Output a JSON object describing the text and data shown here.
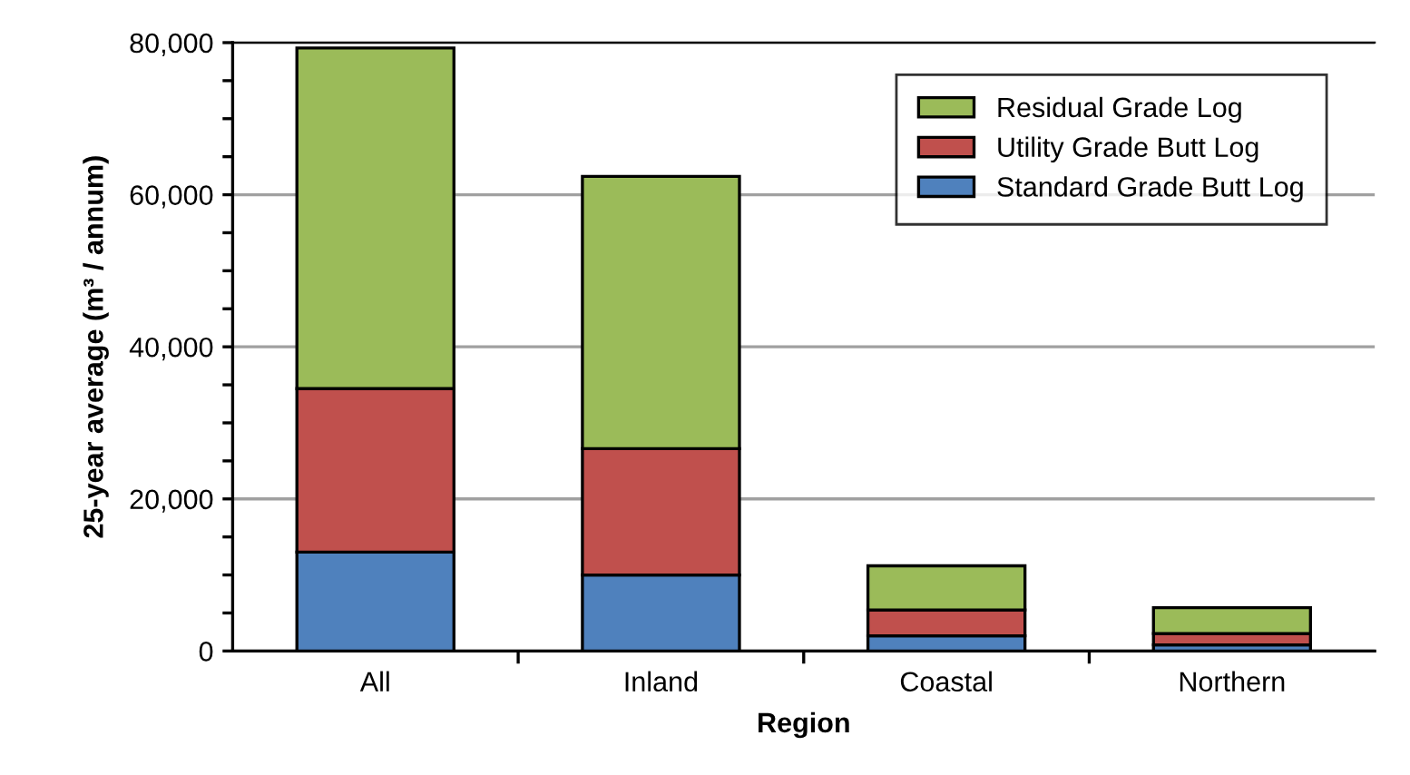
{
  "chart_data": {
    "type": "bar",
    "stacked": true,
    "xlabel": "Region",
    "ylabel": "25-year average (m³ / annum)",
    "categories": [
      "All",
      "Inland",
      "Coastal",
      "Northern"
    ],
    "series": [
      {
        "name": "Standard Grade Butt Log",
        "color": "#4f81bd",
        "values": [
          13000,
          10000,
          2000,
          800
        ]
      },
      {
        "name": "Utility Grade Butt Log",
        "color": "#c0504d",
        "values": [
          21500,
          16600,
          3400,
          1500
        ]
      },
      {
        "name": "Residual Grade Log",
        "color": "#9bbb59",
        "values": [
          44800,
          35800,
          5800,
          3400
        ]
      }
    ],
    "ylim": [
      0,
      80000
    ],
    "yticks": [
      {
        "value": 0,
        "label": "0"
      },
      {
        "value": 5000,
        "label": null
      },
      {
        "value": 10000,
        "label": null
      },
      {
        "value": 15000,
        "label": null
      },
      {
        "value": 20000,
        "label": "20,000"
      },
      {
        "value": 25000,
        "label": null
      },
      {
        "value": 30000,
        "label": null
      },
      {
        "value": 35000,
        "label": null
      },
      {
        "value": 40000,
        "label": "40,000"
      },
      {
        "value": 45000,
        "label": null
      },
      {
        "value": 50000,
        "label": null
      },
      {
        "value": 55000,
        "label": null
      },
      {
        "value": 60000,
        "label": "60,000"
      },
      {
        "value": 65000,
        "label": null
      },
      {
        "value": 70000,
        "label": null
      },
      {
        "value": 75000,
        "label": null
      },
      {
        "value": 80000,
        "label": "80,000"
      }
    ],
    "grid": "y",
    "legend": "top right"
  }
}
